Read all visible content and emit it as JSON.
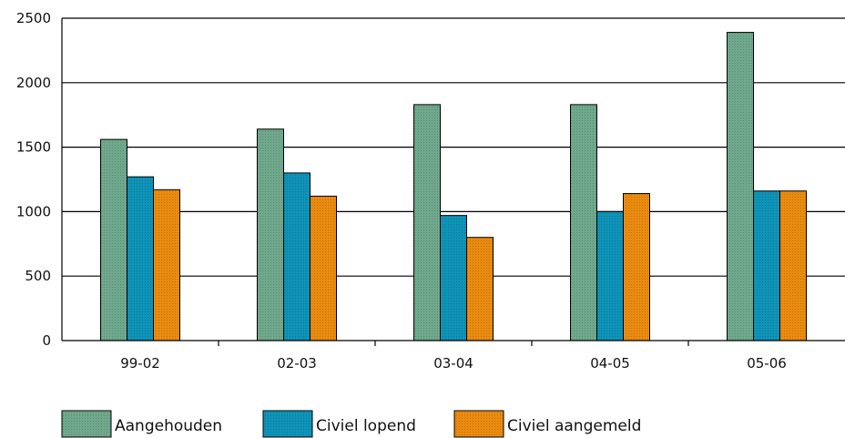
{
  "chart_data": {
    "type": "bar",
    "title": "",
    "xlabel": "",
    "ylabel": "",
    "categories": [
      "99-02",
      "02-03",
      "03-04",
      "04-05",
      "05-06"
    ],
    "ylim": [
      0,
      2500
    ],
    "yticks": [
      0,
      500,
      1000,
      1500,
      2000,
      2500
    ],
    "grid": true,
    "legend_position": "bottom",
    "series": [
      {
        "name": "Aangehouden",
        "color": "#6fa88d",
        "values": [
          1560,
          1640,
          1830,
          1830,
          2390
        ]
      },
      {
        "name": "Civiel lopend",
        "color": "#0f93b8",
        "values": [
          1270,
          1300,
          970,
          1000,
          1160
        ]
      },
      {
        "name": "Civiel aangemeld",
        "color": "#ea8b10",
        "values": [
          1170,
          1120,
          800,
          1140,
          1160
        ]
      }
    ]
  }
}
